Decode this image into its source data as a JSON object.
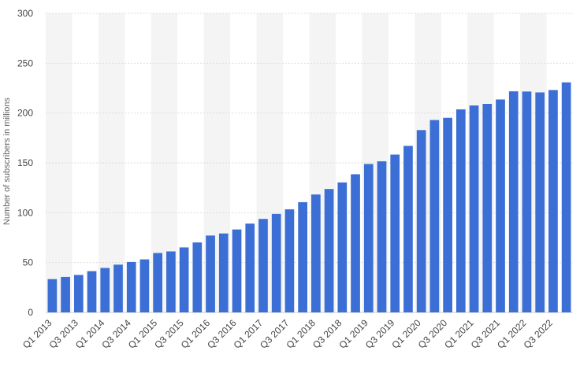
{
  "chart_data": {
    "type": "bar",
    "title": "",
    "xlabel": "",
    "ylabel": "Number of subscribers in millions",
    "ylim": [
      0,
      300
    ],
    "yticks": [
      0,
      50,
      100,
      150,
      200,
      250,
      300
    ],
    "grid": true,
    "bar_color": "#3b6fd6",
    "band_color": "#f4f4f4",
    "categories": [
      "Q1 2013",
      "Q2 2013",
      "Q3 2013",
      "Q4 2013",
      "Q1 2014",
      "Q2 2014",
      "Q3 2014",
      "Q4 2014",
      "Q1 2015",
      "Q2 2015",
      "Q3 2015",
      "Q4 2015",
      "Q1 2016",
      "Q2 2016",
      "Q3 2016",
      "Q4 2016",
      "Q1 2017",
      "Q2 2017",
      "Q3 2017",
      "Q4 2017",
      "Q1 2018",
      "Q2 2018",
      "Q3 2018",
      "Q4 2018",
      "Q1 2019",
      "Q2 2019",
      "Q3 2019",
      "Q4 2019",
      "Q1 2020",
      "Q2 2020",
      "Q3 2020",
      "Q4 2020",
      "Q1 2021",
      "Q2 2021",
      "Q3 2021",
      "Q4 2021",
      "Q1 2022",
      "Q2 2022",
      "Q3 2022",
      "Q4 2022"
    ],
    "visible_x_labels": [
      "Q1 2013",
      "Q3 2013",
      "Q1 2014",
      "Q3 2014",
      "Q1 2015",
      "Q3 2015",
      "Q1 2016",
      "Q3 2016",
      "Q1 2017",
      "Q3 2017",
      "Q1 2018",
      "Q3 2018",
      "Q1 2019",
      "Q3 2019",
      "Q1 2020",
      "Q3 2020",
      "Q1 2021",
      "Q3 2021",
      "Q1 2022",
      "Q3 2022"
    ],
    "values": [
      33.4,
      35.6,
      37.6,
      41.4,
      44.6,
      47.9,
      50.6,
      53.2,
      59.6,
      61.2,
      65.2,
      70.2,
      77.1,
      79.2,
      83.2,
      89.1,
      93.8,
      98.8,
      103.4,
      110.6,
      118.3,
      123.8,
      130.4,
      138.6,
      148.9,
      151.6,
      158.3,
      167.1,
      182.9,
      193.0,
      195.2,
      203.7,
      207.6,
      209.2,
      213.6,
      221.8,
      221.6,
      220.7,
      223.1,
      230.8
    ]
  }
}
